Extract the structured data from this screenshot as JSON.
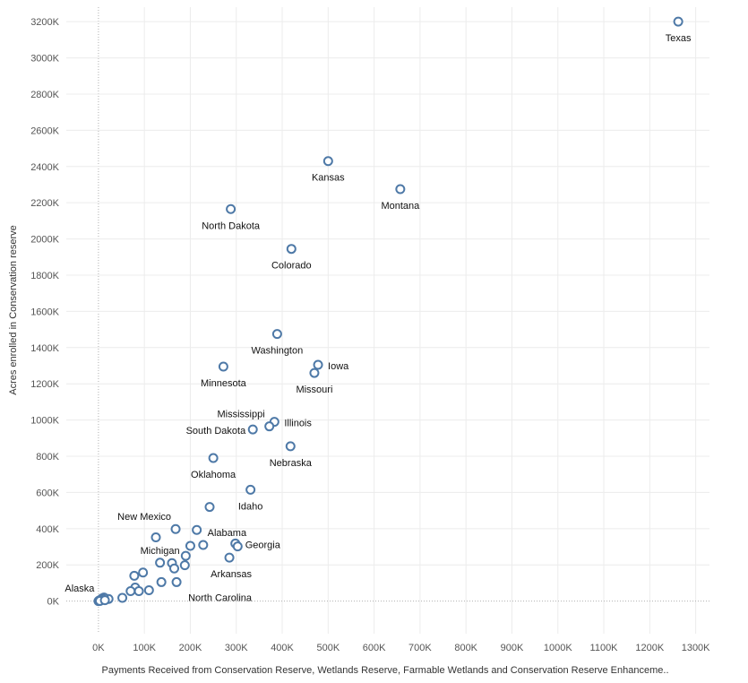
{
  "chart_data": {
    "type": "scatter",
    "xlabel": "Payments Received from Conservation Reserve, Wetlands Reserve, Farmable Wetlands and Conservation Reserve Enhanceme..",
    "ylabel": "Acres enrolled in Conservation reserve",
    "xlim": [
      -70,
      1330
    ],
    "ylim": [
      -180,
      3280
    ],
    "x_ticks": [
      "0K",
      "100K",
      "200K",
      "300K",
      "400K",
      "500K",
      "600K",
      "700K",
      "800K",
      "900K",
      "1000K",
      "1100K",
      "1200K",
      "1300K"
    ],
    "y_ticks": [
      "0K",
      "200K",
      "400K",
      "600K",
      "800K",
      "1000K",
      "1200K",
      "1400K",
      "1600K",
      "1800K",
      "2000K",
      "2200K",
      "2400K",
      "2600K",
      "2800K",
      "3000K",
      "3200K"
    ],
    "grid": true,
    "legend": "none",
    "marker_color": "#4e79a7",
    "points": [
      {
        "x": 1262,
        "y": 3200,
        "label": "Texas",
        "lpos": "below"
      },
      {
        "x": 500,
        "y": 2430,
        "label": "Kansas",
        "lpos": "below"
      },
      {
        "x": 657,
        "y": 2275,
        "label": "Montana",
        "lpos": "below"
      },
      {
        "x": 288,
        "y": 2165,
        "label": "North Dakota",
        "lpos": "below"
      },
      {
        "x": 420,
        "y": 1945,
        "label": "Colorado",
        "lpos": "below"
      },
      {
        "x": 389,
        "y": 1475,
        "label": "Washington",
        "lpos": "below"
      },
      {
        "x": 478,
        "y": 1305,
        "label": "Iowa",
        "lpos": "right"
      },
      {
        "x": 272,
        "y": 1295,
        "label": "Minnesota",
        "lpos": "below"
      },
      {
        "x": 470,
        "y": 1260,
        "label": "Missouri",
        "lpos": "below"
      },
      {
        "x": 383,
        "y": 990,
        "label": "Illinois",
        "lpos": "right"
      },
      {
        "x": 372,
        "y": 965,
        "label": "Mississippi",
        "lpos": "above-left"
      },
      {
        "x": 336,
        "y": 948,
        "label": "South Dakota",
        "lpos": "left"
      },
      {
        "x": 418,
        "y": 855,
        "label": "Nebraska",
        "lpos": "below"
      },
      {
        "x": 250,
        "y": 790,
        "label": "Oklahoma",
        "lpos": "below"
      },
      {
        "x": 331,
        "y": 615,
        "label": "Idaho",
        "lpos": "below"
      },
      {
        "x": 242,
        "y": 520,
        "label": "",
        "lpos": "none"
      },
      {
        "x": 168,
        "y": 398,
        "label": "New Mexico",
        "lpos": "above-left"
      },
      {
        "x": 214,
        "y": 393,
        "label": "Alabama",
        "lpos": "below-right"
      },
      {
        "x": 125,
        "y": 352,
        "label": "",
        "lpos": "none"
      },
      {
        "x": 298,
        "y": 318,
        "label": "Georgia",
        "lpos": "right"
      },
      {
        "x": 228,
        "y": 310,
        "label": "",
        "lpos": "none"
      },
      {
        "x": 303,
        "y": 302,
        "label": "",
        "lpos": "none"
      },
      {
        "x": 200,
        "y": 305,
        "label": "",
        "lpos": "none"
      },
      {
        "x": 190,
        "y": 250,
        "label": "",
        "lpos": "none"
      },
      {
        "x": 285,
        "y": 240,
        "label": "Arkansas",
        "lpos": "below"
      },
      {
        "x": 160,
        "y": 210,
        "label": "",
        "lpos": "none"
      },
      {
        "x": 134,
        "y": 212,
        "label": "Michigan",
        "lpos": "above"
      },
      {
        "x": 188,
        "y": 198,
        "label": "",
        "lpos": "none"
      },
      {
        "x": 165,
        "y": 180,
        "label": "",
        "lpos": "none"
      },
      {
        "x": 97,
        "y": 158,
        "label": "",
        "lpos": "none"
      },
      {
        "x": 78,
        "y": 140,
        "label": "",
        "lpos": "none"
      },
      {
        "x": 137,
        "y": 105,
        "label": "",
        "lpos": "none"
      },
      {
        "x": 170,
        "y": 105,
        "label": "North Carolina",
        "lpos": "below-right"
      },
      {
        "x": 80,
        "y": 75,
        "label": "",
        "lpos": "none"
      },
      {
        "x": 110,
        "y": 60,
        "label": "",
        "lpos": "none"
      },
      {
        "x": 70,
        "y": 55,
        "label": "",
        "lpos": "none"
      },
      {
        "x": 88,
        "y": 55,
        "label": "",
        "lpos": "none"
      },
      {
        "x": 52,
        "y": 18,
        "label": "",
        "lpos": "none"
      },
      {
        "x": 22,
        "y": 12,
        "label": "",
        "lpos": "none"
      },
      {
        "x": 12,
        "y": 20,
        "label": "",
        "lpos": "none"
      },
      {
        "x": 8,
        "y": 15,
        "label": "",
        "lpos": "none"
      },
      {
        "x": 5,
        "y": 8,
        "label": "",
        "lpos": "none"
      },
      {
        "x": 2,
        "y": 4,
        "label": "",
        "lpos": "none"
      },
      {
        "x": 1,
        "y": 2,
        "label": "Alaska",
        "lpos": "above-left"
      },
      {
        "x": 0,
        "y": 0,
        "label": "",
        "lpos": "none"
      },
      {
        "x": 3,
        "y": 1,
        "label": "",
        "lpos": "none"
      },
      {
        "x": 14,
        "y": 5,
        "label": "",
        "lpos": "none"
      }
    ]
  }
}
